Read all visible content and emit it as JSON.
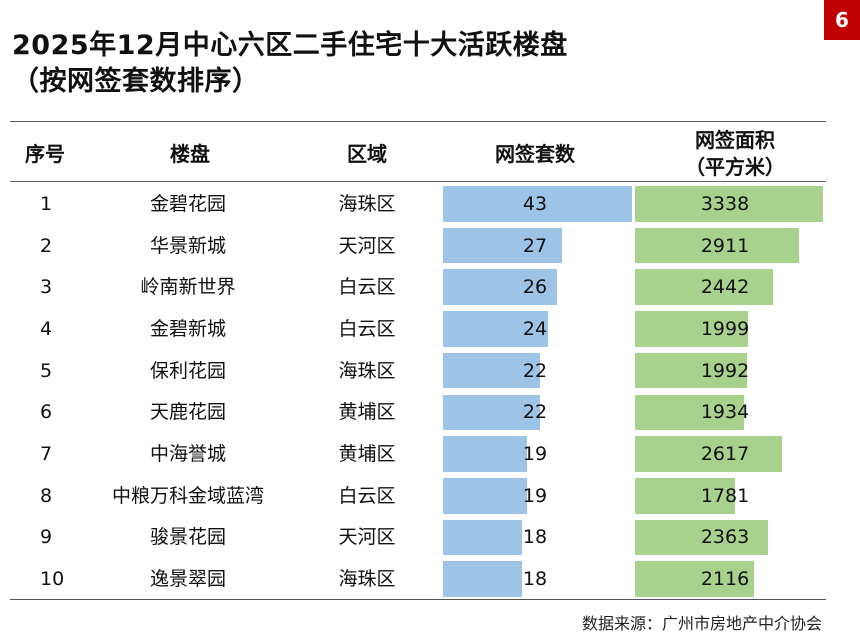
{
  "page_number": "6",
  "title_line1": "2025年12月中心六区二手住宅十大活跃楼盘",
  "title_line2": "（按网签套数排序）",
  "headers": {
    "rank": "序号",
    "project": "楼盘",
    "district": "区域",
    "units": "网签套数",
    "area_line1": "网签面积",
    "area_line2": "（平方米）"
  },
  "source": "数据来源：广州市房地产中介协会",
  "colors": {
    "units_bar": "#9dc3e6",
    "area_bar": "#a9d18e",
    "badge": "#c00000"
  },
  "chart_data": {
    "type": "table",
    "columns": [
      "序号",
      "楼盘",
      "区域",
      "网签套数",
      "网签面积（平方米）"
    ],
    "rows": [
      {
        "rank": "1",
        "project": "金碧花园",
        "district": "海珠区",
        "units": 43,
        "area": 3338
      },
      {
        "rank": "2",
        "project": "华景新城",
        "district": "天河区",
        "units": 27,
        "area": 2911
      },
      {
        "rank": "3",
        "project": "岭南新世界",
        "district": "白云区",
        "units": 26,
        "area": 2442
      },
      {
        "rank": "4",
        "project": "金碧新城",
        "district": "白云区",
        "units": 24,
        "area": 1999
      },
      {
        "rank": "5",
        "project": "保利花园",
        "district": "海珠区",
        "units": 22,
        "area": 1992
      },
      {
        "rank": "6",
        "project": "天鹿花园",
        "district": "黄埔区",
        "units": 22,
        "area": 1934
      },
      {
        "rank": "7",
        "project": "中海誉城",
        "district": "黄埔区",
        "units": 19,
        "area": 2617
      },
      {
        "rank": "8",
        "project": "中粮万科金域蓝湾",
        "district": "白云区",
        "units": 19,
        "area": 1781
      },
      {
        "rank": "9",
        "project": "骏景花园",
        "district": "天河区",
        "units": 18,
        "area": 2363
      },
      {
        "rank": "10",
        "project": "逸景翠园",
        "district": "海珠区",
        "units": 18,
        "area": 2116
      }
    ]
  }
}
